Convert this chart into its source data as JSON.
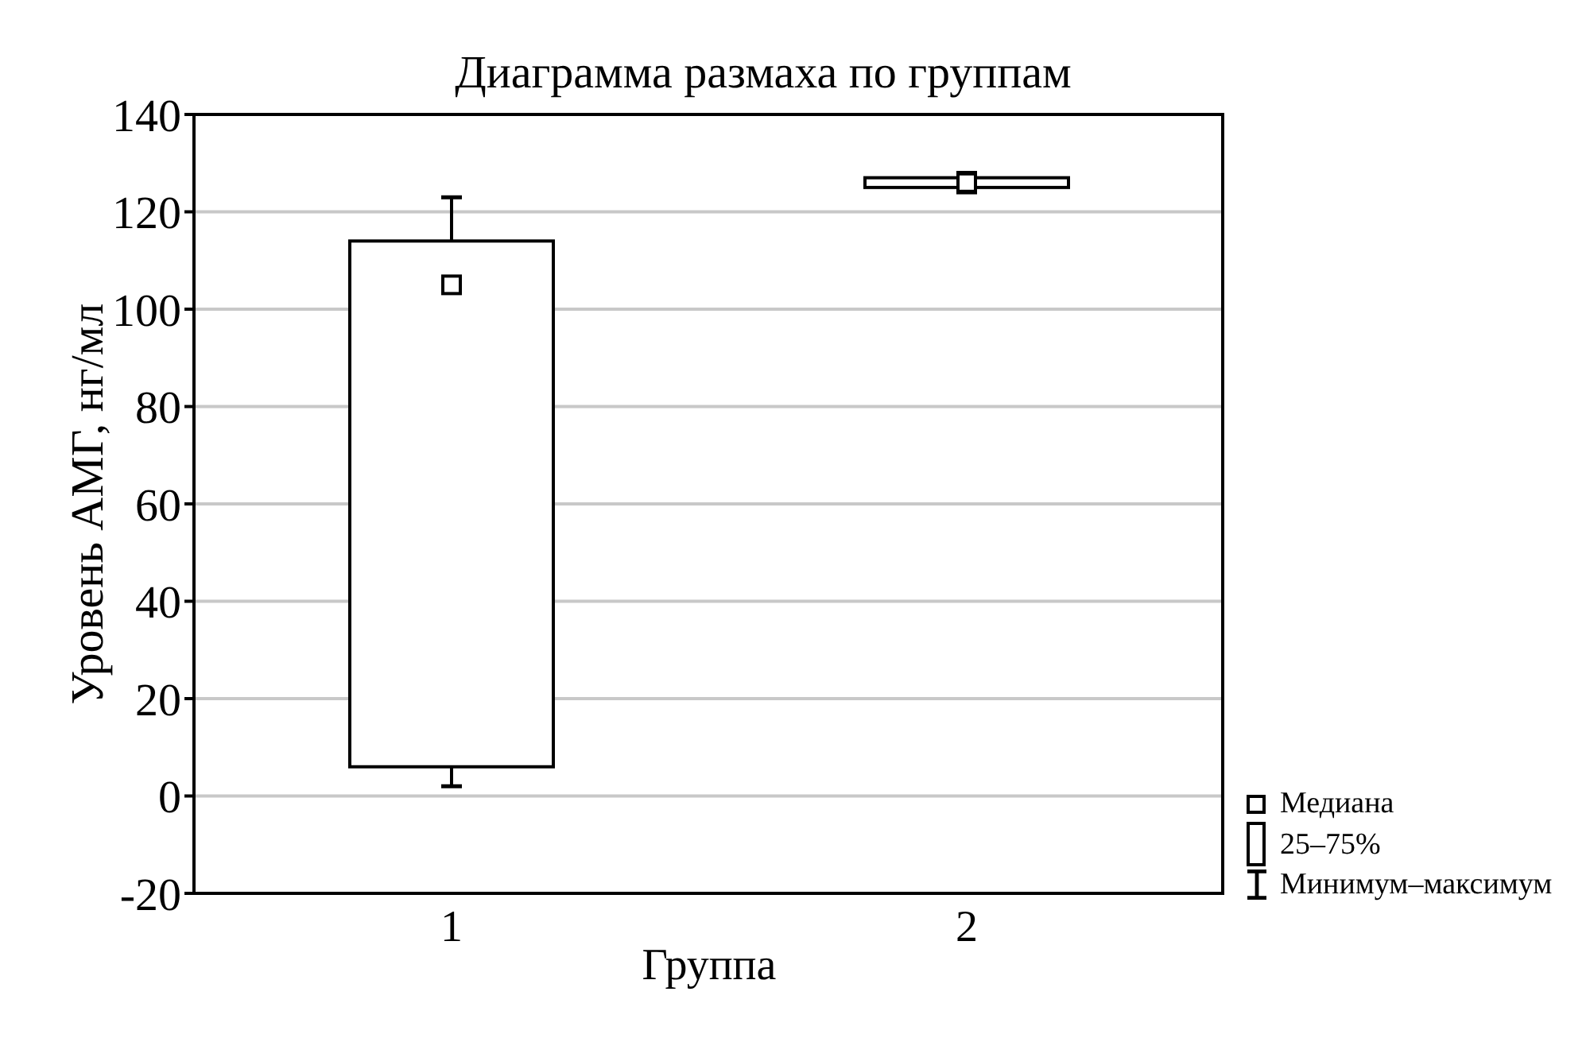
{
  "chart_data": {
    "type": "box",
    "title": "Диаграмма размаха по группам",
    "xlabel": "Группа",
    "ylabel": "Уровень АМГ, нг/мл",
    "categories": [
      "1",
      "2"
    ],
    "boxes": [
      {
        "low": 2,
        "q1": 6,
        "median": 105,
        "q3": 114,
        "high": 123
      },
      {
        "low": 124,
        "q1": 125,
        "median": 126,
        "q3": 127,
        "high": 128
      }
    ],
    "color": "#000000",
    "marker": "square",
    "ylim": [
      -20,
      140
    ],
    "yticks": [
      -20,
      0,
      20,
      40,
      60,
      80,
      100,
      120,
      140
    ],
    "grid": "y",
    "annotations": [
      "Медиана",
      "25–75%",
      "Минимум–максимум"
    ]
  }
}
